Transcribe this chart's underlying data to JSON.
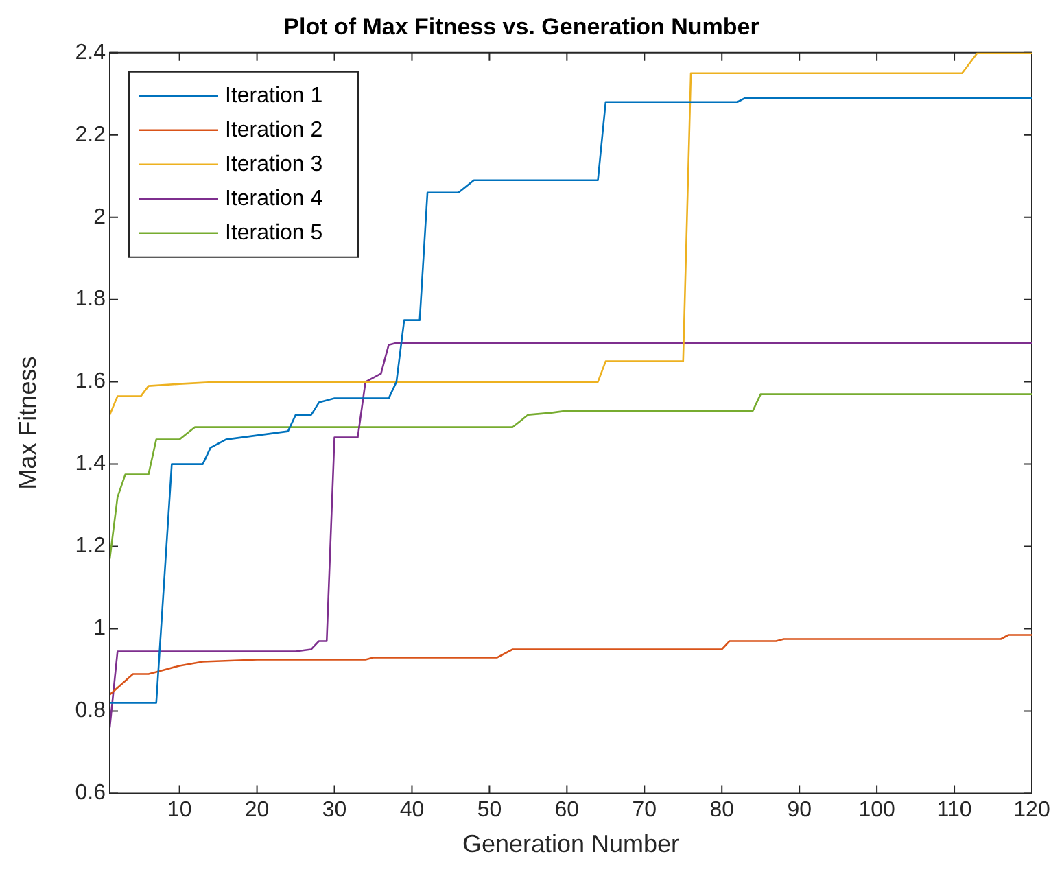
{
  "chart_data": {
    "type": "line",
    "title": "Plot of Max Fitness vs. Generation Number",
    "xlabel": "Generation Number",
    "ylabel": "Max Fitness",
    "xlim": [
      1,
      120
    ],
    "xticks": [
      10,
      20,
      30,
      40,
      50,
      60,
      70,
      80,
      90,
      100,
      110,
      120
    ],
    "ylim": [
      0.6,
      2.4
    ],
    "yticks": [
      0.6,
      0.8,
      1,
      1.2,
      1.4,
      1.6,
      1.8,
      2,
      2.2,
      2.4
    ],
    "grid": false,
    "legend": "top left",
    "marker": "none",
    "line_style": "solid",
    "series": [
      {
        "name": "Iteration 1",
        "color": "#0072bd",
        "x": [
          1,
          7,
          9,
          13,
          14,
          16,
          20,
          24,
          25,
          27,
          28,
          30,
          37,
          38,
          39,
          41,
          42,
          46,
          48,
          64,
          65,
          82,
          83,
          120
        ],
        "values": [
          0.82,
          0.82,
          1.4,
          1.4,
          1.44,
          1.46,
          1.47,
          1.48,
          1.52,
          1.52,
          1.55,
          1.56,
          1.56,
          1.6,
          1.75,
          1.75,
          2.06,
          2.06,
          2.09,
          2.09,
          2.28,
          2.28,
          2.29,
          2.29
        ]
      },
      {
        "name": "Iteration 2",
        "color": "#d95319",
        "x": [
          1,
          4,
          6,
          8,
          10,
          13,
          20,
          34,
          35,
          51,
          53,
          80,
          81,
          87,
          88,
          116,
          117,
          120
        ],
        "values": [
          0.84,
          0.89,
          0.89,
          0.9,
          0.91,
          0.92,
          0.925,
          0.925,
          0.93,
          0.93,
          0.95,
          0.95,
          0.97,
          0.97,
          0.975,
          0.975,
          0.985,
          0.985
        ]
      },
      {
        "name": "Iteration 3",
        "color": "#edb120",
        "x": [
          1,
          2,
          5,
          6,
          10,
          15,
          64,
          65,
          75,
          76,
          111,
          113,
          120
        ],
        "values": [
          1.52,
          1.565,
          1.565,
          1.59,
          1.595,
          1.6,
          1.6,
          1.65,
          1.65,
          2.35,
          2.35,
          2.4,
          2.4
        ]
      },
      {
        "name": "Iteration 4",
        "color": "#7e2f8e",
        "x": [
          1,
          2,
          25,
          27,
          28,
          29,
          30,
          33,
          34,
          36,
          37,
          38,
          120
        ],
        "values": [
          0.76,
          0.945,
          0.945,
          0.95,
          0.97,
          0.97,
          1.465,
          1.465,
          1.6,
          1.62,
          1.69,
          1.695,
          1.695
        ]
      },
      {
        "name": "Iteration 5",
        "color": "#77ac30",
        "x": [
          1,
          2,
          3,
          6,
          7,
          10,
          12,
          53,
          55,
          58,
          60,
          84,
          85,
          120
        ],
        "values": [
          1.17,
          1.32,
          1.375,
          1.375,
          1.46,
          1.46,
          1.49,
          1.49,
          1.52,
          1.525,
          1.53,
          1.53,
          1.57,
          1.57
        ]
      }
    ]
  }
}
